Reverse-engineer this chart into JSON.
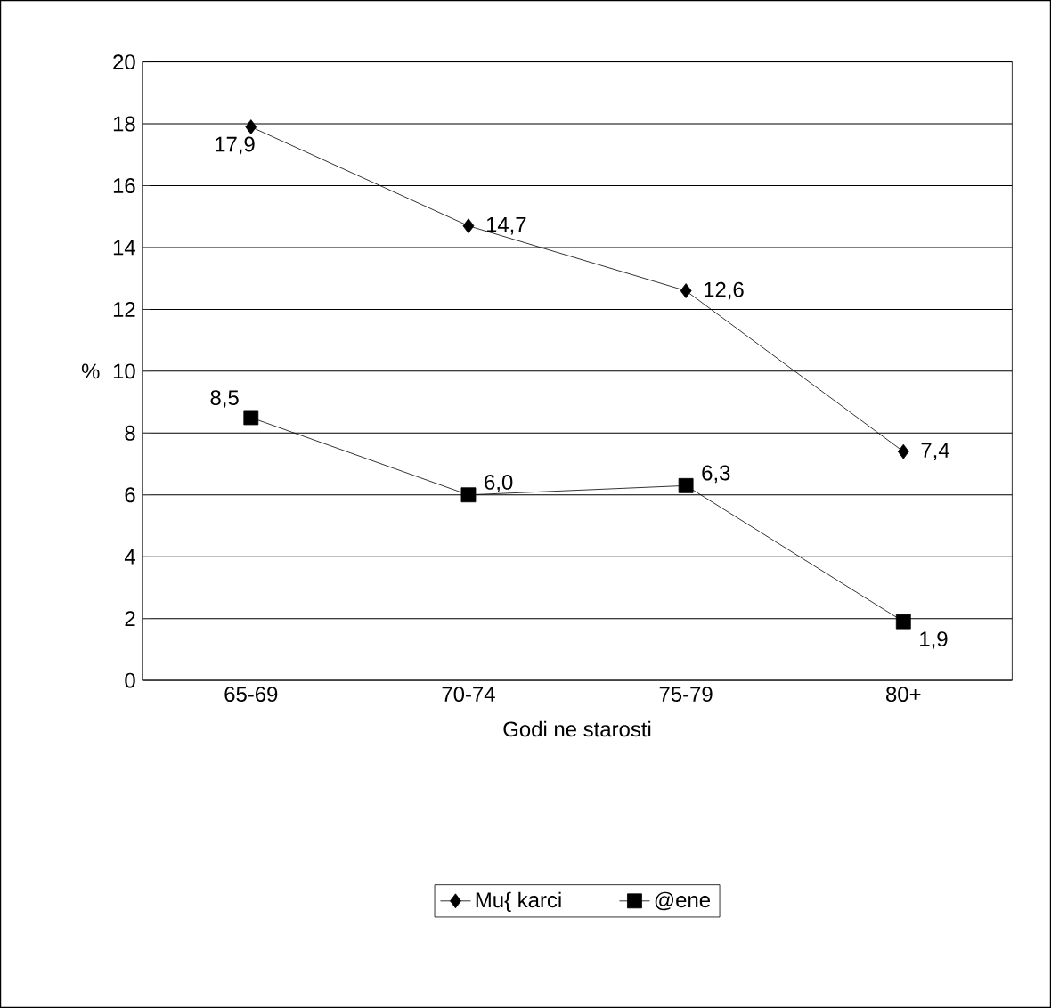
{
  "chart_data": {
    "type": "line",
    "xlabel": "Godi ne starosti",
    "ylabel": "%",
    "categories": [
      "65-69",
      "70-74",
      "75-79",
      "80+"
    ],
    "series": [
      {
        "name": "Mu{ karci",
        "color": "#000000",
        "marker": "diamond",
        "values": [
          17.9,
          14.7,
          12.6,
          7.4
        ]
      },
      {
        "name": "@ene",
        "color": "#000000",
        "marker": "square",
        "values": [
          8.5,
          6.0,
          6.3,
          1.9
        ]
      }
    ],
    "value_labels": [
      [
        "17,9",
        "14,7",
        "12,6",
        "7,4"
      ],
      [
        "8,5",
        "6,0",
        "6,3",
        "1,9"
      ]
    ],
    "ylim": [
      0,
      20
    ],
    "yticks": [
      0,
      2,
      4,
      6,
      8,
      10,
      12,
      14,
      16,
      18,
      20
    ],
    "grid": "y",
    "legend": "bottom",
    "line_style": "solid"
  }
}
